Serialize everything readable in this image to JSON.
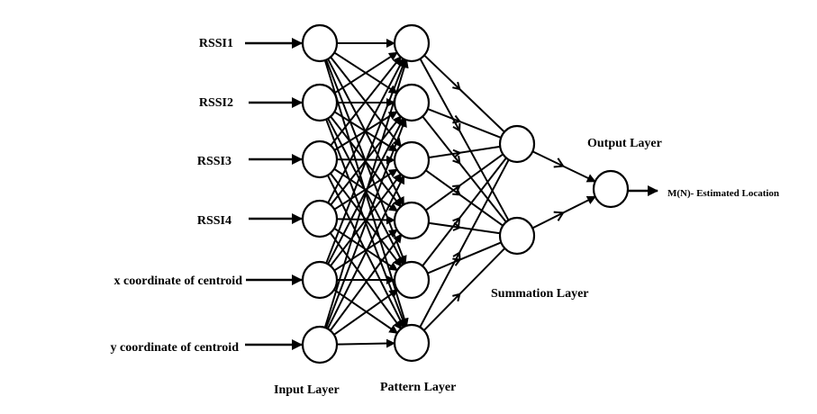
{
  "diagram": {
    "input_labels": [
      "RSSI1",
      "RSSI2",
      "RSSI3",
      "RSSI4",
      "x coordinate of centroid",
      "y coordinate of centroid"
    ],
    "layer_labels": {
      "input": "Input Layer",
      "pattern": "Pattern Layer",
      "summation": "Summation Layer",
      "output": "Output Layer"
    },
    "output_label": "M(N)- Estimated Location",
    "layers": {
      "input_count": 6,
      "pattern_count": 6,
      "summation_count": 2,
      "output_count": 1
    },
    "colors": {
      "stroke": "#000000",
      "background": "#ffffff"
    }
  }
}
